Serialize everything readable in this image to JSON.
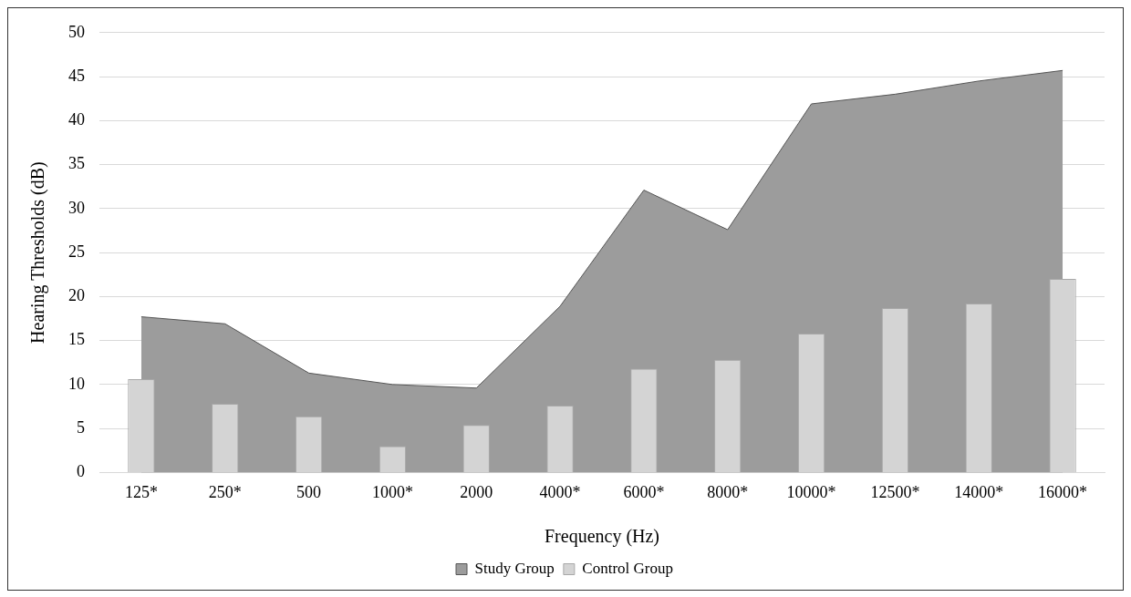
{
  "chart_data": {
    "type": "bar",
    "xlabel": "Frequency (Hz)",
    "ylabel": "Hearing Thresholds (dB)",
    "categories": [
      "125*",
      "250*",
      "500",
      "1000*",
      "2000",
      "4000*",
      "6000*",
      "8000*",
      "10000*",
      "12500*",
      "14000*",
      "16000*"
    ],
    "series": [
      {
        "name": "Study Group",
        "type": "area",
        "color": "#9c9c9c",
        "values": [
          17.7,
          16.9,
          11.3,
          10.0,
          9.6,
          18.9,
          32.1,
          27.6,
          41.9,
          43.0,
          44.5,
          45.7
        ]
      },
      {
        "name": "Control Group",
        "color": "#d4d4d4",
        "values": [
          10.6,
          7.8,
          6.4,
          3.0,
          5.4,
          7.6,
          11.8,
          12.8,
          15.8,
          18.7,
          19.2,
          22.0
        ]
      }
    ],
    "ylim": [
      0,
      50
    ],
    "yticks": [
      0,
      5,
      10,
      15,
      20,
      25,
      30,
      35,
      40,
      45,
      50
    ],
    "grid": "y",
    "legend": "bottom"
  }
}
